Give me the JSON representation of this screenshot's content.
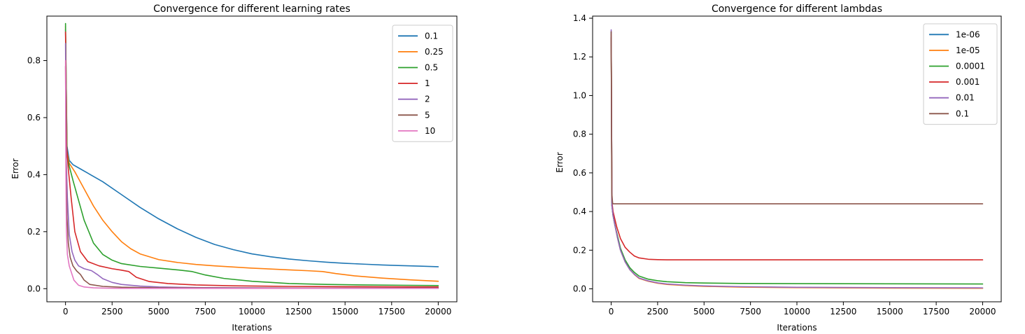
{
  "chart_data": [
    {
      "type": "line",
      "title": "Convergence for different learning rates",
      "xlabel": "Iterations",
      "ylabel": "Error",
      "xlim": [
        -1000,
        21000
      ],
      "ylim": [
        -0.046,
        0.956
      ],
      "xticks": [
        0,
        2500,
        5000,
        7500,
        10000,
        12500,
        15000,
        17500,
        20000
      ],
      "xtick_labels": [
        "0",
        "2500",
        "5000",
        "7500",
        "10000",
        "12500",
        "15000",
        "17500",
        "20000"
      ],
      "yticks": [
        0.0,
        0.2,
        0.4,
        0.6,
        0.8
      ],
      "ytick_labels": [
        "0.0",
        "0.2",
        "0.4",
        "0.6",
        "0.8"
      ],
      "grid": false,
      "legend": "top-right",
      "series": [
        {
          "name": "0.1",
          "color": "#1f77b4",
          "x": [
            0,
            80,
            200,
            400,
            800,
            1200,
            2000,
            3000,
            4000,
            5000,
            6000,
            7000,
            8000,
            9000,
            10000,
            11000,
            12000,
            13000,
            14000,
            15000,
            16000,
            17000,
            18000,
            19000,
            20000
          ],
          "y": [
            0.91,
            0.5,
            0.45,
            0.435,
            0.42,
            0.405,
            0.375,
            0.33,
            0.285,
            0.245,
            0.21,
            0.18,
            0.155,
            0.137,
            0.122,
            0.112,
            0.104,
            0.098,
            0.093,
            0.089,
            0.086,
            0.083,
            0.081,
            0.079,
            0.077
          ]
        },
        {
          "name": "0.25",
          "color": "#ff7f0e",
          "x": [
            0,
            80,
            200,
            500,
            1000,
            1500,
            2000,
            2500,
            3000,
            3500,
            4000,
            5000,
            6000,
            7000,
            8000,
            9000,
            10000,
            11000,
            12000,
            13000,
            13800,
            14500,
            15500,
            17000,
            18500,
            20000
          ],
          "y": [
            0.92,
            0.48,
            0.44,
            0.41,
            0.35,
            0.29,
            0.24,
            0.2,
            0.165,
            0.14,
            0.122,
            0.102,
            0.092,
            0.085,
            0.08,
            0.076,
            0.072,
            0.069,
            0.066,
            0.063,
            0.06,
            0.053,
            0.045,
            0.037,
            0.031,
            0.026
          ]
        },
        {
          "name": "0.5",
          "color": "#2ca02c",
          "x": [
            0,
            80,
            200,
            400,
            700,
            1000,
            1500,
            2000,
            2500,
            3000,
            4000,
            5000,
            6000,
            6800,
            7500,
            8500,
            10000,
            12000,
            14000,
            16000,
            18000,
            20000
          ],
          "y": [
            0.93,
            0.47,
            0.43,
            0.38,
            0.31,
            0.24,
            0.16,
            0.12,
            0.1,
            0.088,
            0.078,
            0.072,
            0.066,
            0.06,
            0.048,
            0.036,
            0.026,
            0.018,
            0.015,
            0.013,
            0.012,
            0.011
          ]
        },
        {
          "name": "1",
          "color": "#d62728",
          "x": [
            0,
            60,
            150,
            300,
            500,
            800,
            1200,
            1800,
            2500,
            3000,
            3400,
            3800,
            4500,
            5500,
            7000,
            9000,
            12000,
            15000,
            20000
          ],
          "y": [
            0.9,
            0.5,
            0.42,
            0.32,
            0.2,
            0.13,
            0.095,
            0.08,
            0.07,
            0.065,
            0.06,
            0.04,
            0.025,
            0.018,
            0.013,
            0.01,
            0.008,
            0.007,
            0.006
          ]
        },
        {
          "name": "2",
          "color": "#9467bd",
          "x": [
            0,
            40,
            100,
            200,
            350,
            500,
            700,
            1000,
            1400,
            1700,
            2000,
            2500,
            3000,
            4000,
            5000,
            7000,
            10000,
            15000,
            20000
          ],
          "y": [
            0.86,
            0.45,
            0.32,
            0.19,
            0.13,
            0.1,
            0.08,
            0.07,
            0.063,
            0.05,
            0.035,
            0.022,
            0.015,
            0.009,
            0.006,
            0.004,
            0.003,
            0.002,
            0.002
          ]
        },
        {
          "name": "5",
          "color": "#8c564b",
          "x": [
            0,
            30,
            80,
            150,
            250,
            400,
            600,
            800,
            1000,
            1300,
            2000,
            3000,
            5000,
            10000,
            20000
          ],
          "y": [
            0.78,
            0.4,
            0.25,
            0.16,
            0.11,
            0.08,
            0.062,
            0.05,
            0.03,
            0.015,
            0.008,
            0.005,
            0.003,
            0.002,
            0.002
          ]
        },
        {
          "name": "10",
          "color": "#e377c2",
          "x": [
            0,
            20,
            50,
            100,
            200,
            300,
            450,
            700,
            1000,
            1500,
            2000,
            3000,
            5000,
            10000,
            20000
          ],
          "y": [
            0.8,
            0.4,
            0.2,
            0.12,
            0.08,
            0.06,
            0.03,
            0.012,
            0.006,
            0.003,
            0.002,
            0.001,
            0.001,
            0.001,
            0.001
          ]
        }
      ]
    },
    {
      "type": "line",
      "title": "Convergence for different lambdas",
      "xlabel": "Iterations",
      "ylabel": "Error",
      "xlim": [
        -1000,
        21000
      ],
      "ylim": [
        -0.067,
        1.411
      ],
      "xticks": [
        0,
        2500,
        5000,
        7500,
        10000,
        12500,
        15000,
        17500,
        20000
      ],
      "xtick_labels": [
        "0",
        "2500",
        "5000",
        "7500",
        "10000",
        "12500",
        "15000",
        "17500",
        "20000"
      ],
      "yticks": [
        0.0,
        0.2,
        0.4,
        0.6,
        0.8,
        1.0,
        1.2,
        1.4
      ],
      "ytick_labels": [
        "0.0",
        "0.2",
        "0.4",
        "0.6",
        "0.8",
        "1.0",
        "1.2",
        "1.4"
      ],
      "grid": false,
      "legend": "top-right",
      "series": [
        {
          "name": "1e-06",
          "color": "#1f77b4",
          "x": [
            0,
            40,
            100,
            200,
            350,
            500,
            750,
            1000,
            1250,
            1500,
            2000,
            2500,
            3000,
            4000,
            5000,
            7000,
            10000,
            15000,
            20000
          ],
          "y": [
            1.33,
            0.43,
            0.38,
            0.33,
            0.26,
            0.2,
            0.14,
            0.1,
            0.075,
            0.055,
            0.04,
            0.03,
            0.024,
            0.018,
            0.014,
            0.01,
            0.007,
            0.005,
            0.004
          ]
        },
        {
          "name": "1e-05",
          "color": "#ff7f0e",
          "x": [
            0,
            40,
            100,
            200,
            350,
            500,
            750,
            1000,
            1250,
            1500,
            2000,
            2500,
            3000,
            4000,
            5000,
            7000,
            10000,
            15000,
            20000
          ],
          "y": [
            1.32,
            0.43,
            0.38,
            0.33,
            0.26,
            0.2,
            0.14,
            0.1,
            0.074,
            0.054,
            0.039,
            0.029,
            0.023,
            0.017,
            0.013,
            0.009,
            0.006,
            0.004,
            0.003
          ]
        },
        {
          "name": "0.0001",
          "color": "#2ca02c",
          "x": [
            0,
            40,
            100,
            200,
            350,
            500,
            750,
            1000,
            1250,
            1500,
            2000,
            2500,
            3000,
            4000,
            5000,
            7000,
            10000,
            15000,
            20000
          ],
          "y": [
            1.3,
            0.43,
            0.38,
            0.33,
            0.27,
            0.21,
            0.15,
            0.11,
            0.085,
            0.066,
            0.05,
            0.042,
            0.037,
            0.032,
            0.03,
            0.028,
            0.027,
            0.026,
            0.025
          ]
        },
        {
          "name": "0.001",
          "color": "#d62728",
          "x": [
            0,
            40,
            100,
            200,
            300,
            500,
            750,
            1000,
            1250,
            1500,
            2000,
            2500,
            3000,
            4000,
            6000,
            10000,
            20000
          ],
          "y": [
            1.3,
            0.45,
            0.4,
            0.36,
            0.32,
            0.26,
            0.215,
            0.19,
            0.17,
            0.16,
            0.153,
            0.151,
            0.15,
            0.15,
            0.15,
            0.15,
            0.15
          ]
        },
        {
          "name": "0.01",
          "color": "#9467bd",
          "x": [
            0,
            40,
            100,
            200,
            350,
            500,
            750,
            1000,
            1250,
            1500,
            2000,
            2500,
            3000,
            4000,
            5000,
            7000,
            10000,
            15000,
            20000
          ],
          "y": [
            1.34,
            0.43,
            0.38,
            0.33,
            0.26,
            0.2,
            0.14,
            0.1,
            0.075,
            0.056,
            0.041,
            0.031,
            0.025,
            0.019,
            0.015,
            0.011,
            0.008,
            0.006,
            0.005
          ]
        },
        {
          "name": "0.1",
          "color": "#8c564b",
          "x": [
            0,
            30,
            80,
            200,
            20000
          ],
          "y": [
            1.33,
            0.5,
            0.44,
            0.44,
            0.44
          ]
        }
      ]
    }
  ]
}
